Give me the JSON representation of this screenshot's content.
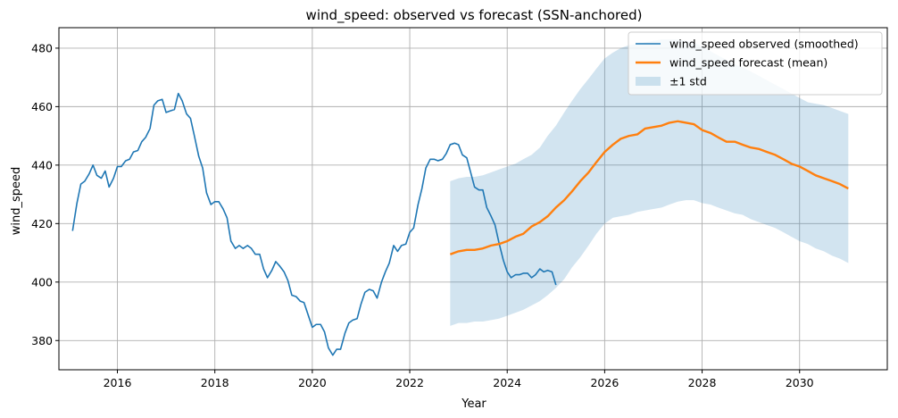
{
  "chart_data": {
    "type": "line",
    "title": "wind_speed: observed vs forecast (SSN-anchored)",
    "xlabel": "Year",
    "ylabel": "wind_speed",
    "xlim": [
      2014.8,
      2031.8
    ],
    "ylim": [
      370,
      487
    ],
    "x_ticks": [
      2016,
      2018,
      2020,
      2022,
      2024,
      2026,
      2028,
      2030,
      2032
    ],
    "x_tick_labels": [
      "2016",
      "2018",
      "2020",
      "2022",
      "2024",
      "2026",
      "2028",
      "2030",
      ""
    ],
    "y_ticks": [
      380,
      400,
      420,
      440,
      460,
      480
    ],
    "y_tick_labels": [
      "380",
      "400",
      "420",
      "440",
      "460",
      "480"
    ],
    "grid": true,
    "legend_position": "top-right",
    "colors": {
      "observed": "#1f77b4",
      "forecast": "#ff7f0e",
      "band": "#1f77b4"
    },
    "legend": [
      {
        "label": "wind_speed observed (smoothed)",
        "kind": "line",
        "color": "#1f77b4"
      },
      {
        "label": "wind_speed forecast (mean)",
        "kind": "line",
        "color": "#ff7f0e"
      },
      {
        "label": "±1 std",
        "kind": "patch",
        "color": "#1f77b4"
      }
    ],
    "series": [
      {
        "name": "wind_speed observed (smoothed)",
        "x": [
          2015.08,
          2015.17,
          2015.25,
          2015.33,
          2015.42,
          2015.5,
          2015.58,
          2015.67,
          2015.75,
          2015.83,
          2015.92,
          2016.0,
          2016.08,
          2016.17,
          2016.25,
          2016.33,
          2016.42,
          2016.5,
          2016.58,
          2016.67,
          2016.75,
          2016.83,
          2016.92,
          2017.0,
          2017.08,
          2017.17,
          2017.25,
          2017.33,
          2017.42,
          2017.5,
          2017.58,
          2017.67,
          2017.75,
          2017.83,
          2017.92,
          2018.0,
          2018.08,
          2018.17,
          2018.25,
          2018.33,
          2018.42,
          2018.5,
          2018.58,
          2018.67,
          2018.75,
          2018.83,
          2018.92,
          2019.0,
          2019.08,
          2019.17,
          2019.25,
          2019.33,
          2019.42,
          2019.5,
          2019.58,
          2019.67,
          2019.75,
          2019.83,
          2019.92,
          2020.0,
          2020.08,
          2020.17,
          2020.25,
          2020.33,
          2020.42,
          2020.5,
          2020.58,
          2020.67,
          2020.75,
          2020.83,
          2020.92,
          2021.0,
          2021.08,
          2021.17,
          2021.25,
          2021.33,
          2021.42,
          2021.5,
          2021.58,
          2021.67,
          2021.75,
          2021.83,
          2021.92,
          2022.0,
          2022.08,
          2022.17,
          2022.25,
          2022.33,
          2022.42,
          2022.5,
          2022.58,
          2022.67,
          2022.75,
          2022.83,
          2022.92,
          2023.0,
          2023.08,
          2023.17,
          2023.25,
          2023.33,
          2023.42,
          2023.5,
          2023.58,
          2023.67,
          2023.75,
          2023.83,
          2023.92,
          2024.0,
          2024.08,
          2024.17,
          2024.25,
          2024.33,
          2024.42,
          2024.5,
          2024.58,
          2024.67,
          2024.75,
          2024.83,
          2024.92,
          2025.0
        ],
        "y": [
          417.5,
          427,
          433.5,
          434.5,
          437,
          440,
          436.5,
          435.5,
          438,
          432.5,
          435.5,
          439.5,
          439.5,
          441.5,
          442,
          444.5,
          445,
          448,
          449.5,
          452.5,
          460.5,
          462,
          462.5,
          458,
          458.5,
          459,
          464.5,
          462,
          457.5,
          456,
          450,
          443,
          439,
          430.5,
          426.5,
          427.5,
          427.5,
          425,
          422,
          414,
          411.5,
          412.5,
          411.5,
          412.5,
          411.5,
          409.5,
          409.5,
          404.5,
          401.5,
          404,
          407,
          405.5,
          403.5,
          400.5,
          395.5,
          395,
          393.5,
          393,
          388.5,
          384.5,
          385.5,
          385.5,
          383,
          377.5,
          375,
          377,
          377,
          382.5,
          386,
          387,
          387.5,
          392.5,
          396.5,
          397.5,
          397,
          394.5,
          400,
          403.5,
          406.5,
          412.5,
          410.5,
          412.5,
          413,
          417,
          418.5,
          426.5,
          432,
          439,
          442,
          442,
          441.5,
          442,
          444,
          447,
          447.5,
          447,
          443.5,
          442.5,
          437.5,
          432.5,
          431.5,
          431.5,
          425.5,
          422.5,
          419.5,
          413.5,
          407.5,
          403.5,
          401.5,
          402.5,
          402.5,
          403,
          403,
          401.5,
          402.5,
          404.5,
          403.5,
          404,
          403.5,
          399
        ]
      },
      {
        "name": "wind_speed forecast (mean)",
        "x": [
          2022.83,
          2023.0,
          2023.17,
          2023.33,
          2023.5,
          2023.67,
          2023.83,
          2024.0,
          2024.17,
          2024.33,
          2024.5,
          2024.67,
          2024.83,
          2025.0,
          2025.17,
          2025.33,
          2025.5,
          2025.67,
          2025.83,
          2026.0,
          2026.17,
          2026.33,
          2026.5,
          2026.67,
          2026.83,
          2027.0,
          2027.17,
          2027.33,
          2027.5,
          2027.67,
          2027.83,
          2028.0,
          2028.17,
          2028.33,
          2028.5,
          2028.67,
          2028.83,
          2029.0,
          2029.17,
          2029.33,
          2029.5,
          2029.67,
          2029.83,
          2030.0,
          2030.17,
          2030.33,
          2030.5,
          2030.67,
          2030.83,
          2031.0
        ],
        "y": [
          409.5,
          410.5,
          411,
          411,
          411.5,
          412.5,
          413,
          414,
          415.5,
          416.5,
          419,
          420.5,
          422.5,
          425.5,
          428,
          431,
          434.5,
          437.5,
          441,
          444.5,
          447,
          449,
          450,
          450.5,
          452.5,
          453,
          453.5,
          454.5,
          455,
          454.5,
          454,
          452,
          451,
          449.5,
          448,
          448,
          447,
          446,
          445.5,
          444.5,
          443.5,
          442,
          440.5,
          439.5,
          438,
          436.5,
          435.5,
          434.5,
          433.5,
          432
        ]
      },
      {
        "name": "±1 std",
        "x": [
          2022.83,
          2023.0,
          2023.17,
          2023.33,
          2023.5,
          2023.67,
          2023.83,
          2024.0,
          2024.17,
          2024.33,
          2024.5,
          2024.67,
          2024.83,
          2025.0,
          2025.17,
          2025.33,
          2025.5,
          2025.67,
          2025.83,
          2026.0,
          2026.17,
          2026.33,
          2026.5,
          2026.67,
          2026.83,
          2027.0,
          2027.17,
          2027.33,
          2027.5,
          2027.67,
          2027.83,
          2028.0,
          2028.17,
          2028.33,
          2028.5,
          2028.67,
          2028.83,
          2029.0,
          2029.17,
          2029.33,
          2029.5,
          2029.67,
          2029.83,
          2030.0,
          2030.17,
          2030.33,
          2030.5,
          2030.67,
          2030.83,
          2031.0
        ],
        "lower": [
          385,
          386,
          386,
          386.5,
          386.5,
          387,
          387.5,
          388.5,
          389.5,
          390.5,
          392,
          393.5,
          395.5,
          398,
          401,
          405,
          408.5,
          412.5,
          416.5,
          420,
          422,
          422.5,
          423,
          424,
          424.5,
          425,
          425.5,
          426.5,
          427.5,
          428,
          428,
          427,
          426.5,
          425.5,
          424.5,
          423.5,
          423,
          421.5,
          420.5,
          419.5,
          418.5,
          417,
          415.5,
          414,
          413,
          411.5,
          410.5,
          409,
          408,
          406.5
        ],
        "upper": [
          434.5,
          435.5,
          436,
          436,
          436.5,
          437.5,
          438.5,
          439.5,
          440.5,
          442,
          443.5,
          446,
          450,
          453.5,
          458,
          462,
          466,
          469.5,
          473,
          476.5,
          478.5,
          480,
          481,
          481.5,
          482,
          482.5,
          483,
          483,
          483,
          482.5,
          482,
          480.5,
          479,
          477.5,
          476,
          474.5,
          473.5,
          472,
          470.5,
          469,
          467.5,
          466,
          464.5,
          463,
          461.5,
          461,
          460.5,
          459.5,
          458.5,
          457.5
        ]
      }
    ]
  }
}
